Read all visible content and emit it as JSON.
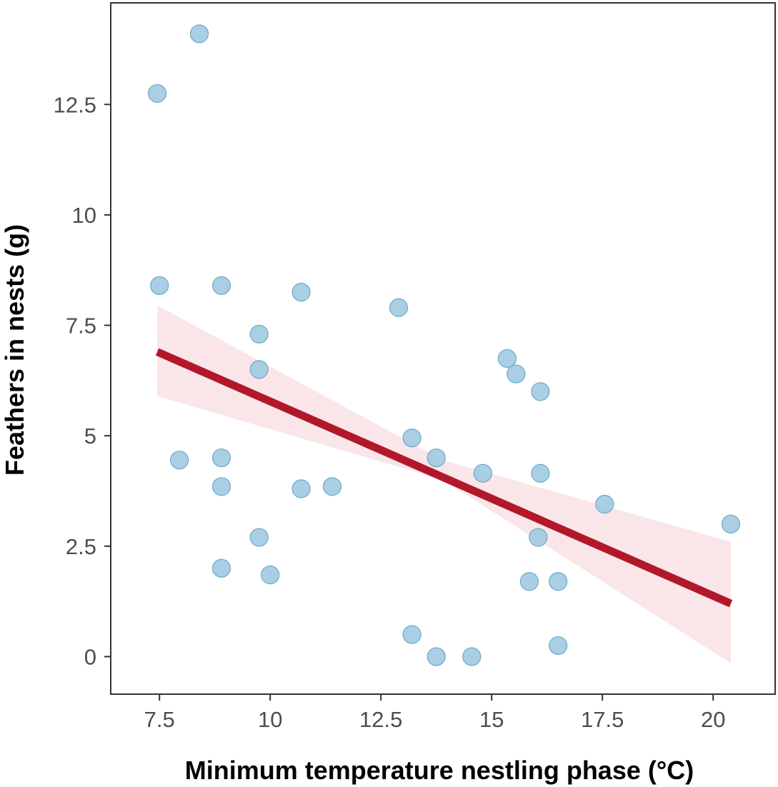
{
  "chart_data": {
    "type": "scatter",
    "title": "",
    "xlabel": "Minimum temperature nestling phase (°C)",
    "ylabel": "Feathers in nests (g)",
    "xlim": [
      6.4,
      21.4
    ],
    "ylim": [
      -0.85,
      14.8
    ],
    "x_ticks": [
      7.5,
      10,
      12.5,
      15,
      17.5,
      20
    ],
    "x_tick_labels": [
      "7.5",
      "10",
      "12.5",
      "15",
      "17.5",
      "20"
    ],
    "y_ticks": [
      0,
      2.5,
      5,
      7.5,
      10,
      12.5
    ],
    "y_tick_labels": [
      "0",
      "2.5",
      "5",
      "7.5",
      "10",
      "12.5"
    ],
    "grid": false,
    "points": [
      {
        "x": 8.4,
        "y": 14.1
      },
      {
        "x": 7.45,
        "y": 12.75
      },
      {
        "x": 7.5,
        "y": 8.4
      },
      {
        "x": 8.9,
        "y": 8.4
      },
      {
        "x": 10.7,
        "y": 8.25
      },
      {
        "x": 12.9,
        "y": 7.9
      },
      {
        "x": 9.75,
        "y": 7.3
      },
      {
        "x": 9.75,
        "y": 6.5
      },
      {
        "x": 15.35,
        "y": 6.75
      },
      {
        "x": 15.55,
        "y": 6.4
      },
      {
        "x": 16.1,
        "y": 6.0
      },
      {
        "x": 13.2,
        "y": 4.95
      },
      {
        "x": 7.95,
        "y": 4.45
      },
      {
        "x": 8.9,
        "y": 4.5
      },
      {
        "x": 13.75,
        "y": 4.5
      },
      {
        "x": 14.8,
        "y": 4.15
      },
      {
        "x": 16.1,
        "y": 4.15
      },
      {
        "x": 8.9,
        "y": 3.85
      },
      {
        "x": 10.7,
        "y": 3.8
      },
      {
        "x": 11.4,
        "y": 3.85
      },
      {
        "x": 17.55,
        "y": 3.45
      },
      {
        "x": 20.4,
        "y": 3.0
      },
      {
        "x": 9.75,
        "y": 2.7
      },
      {
        "x": 16.05,
        "y": 2.7
      },
      {
        "x": 8.9,
        "y": 2.0
      },
      {
        "x": 10.0,
        "y": 1.85
      },
      {
        "x": 15.85,
        "y": 1.7
      },
      {
        "x": 16.5,
        "y": 1.7
      },
      {
        "x": 13.2,
        "y": 0.5
      },
      {
        "x": 13.75,
        "y": 0.0
      },
      {
        "x": 14.55,
        "y": 0.0
      },
      {
        "x": 16.5,
        "y": 0.25
      }
    ],
    "fit_line": {
      "x": [
        7.45,
        20.4
      ],
      "y": [
        6.9,
        1.2
      ]
    },
    "confidence_band": {
      "x": [
        7.45,
        13.9,
        20.4
      ],
      "lower": [
        5.9,
        4.0,
        -0.15
      ],
      "upper": [
        7.95,
        4.45,
        2.6
      ]
    },
    "colors": {
      "points_fill": "#9ecae1",
      "points_stroke": "#6fa8c8",
      "fit_line": "#b2182b",
      "band_fill": "#f6d5d9"
    }
  }
}
